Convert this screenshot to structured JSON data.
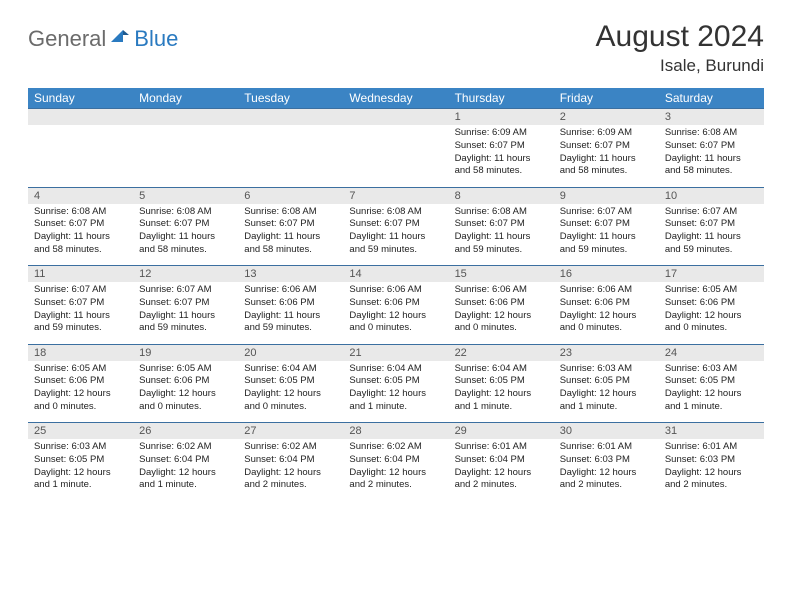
{
  "brand": {
    "general": "General",
    "blue": "Blue"
  },
  "title": "August 2024",
  "location": "Isale, Burundi",
  "colors": {
    "header_bg": "#3b84c4",
    "header_text": "#ffffff",
    "daynum_bg": "#e9e9e9",
    "rule": "#3b6fa0",
    "logo_gray": "#6b6b6b",
    "logo_blue": "#2a7ac0"
  },
  "day_headers": [
    "Sunday",
    "Monday",
    "Tuesday",
    "Wednesday",
    "Thursday",
    "Friday",
    "Saturday"
  ],
  "weeks": [
    {
      "nums": [
        "",
        "",
        "",
        "",
        "1",
        "2",
        "3"
      ],
      "cells": [
        null,
        null,
        null,
        null,
        {
          "sunrise": "6:09 AM",
          "sunset": "6:07 PM",
          "daylight": "11 hours and 58 minutes."
        },
        {
          "sunrise": "6:09 AM",
          "sunset": "6:07 PM",
          "daylight": "11 hours and 58 minutes."
        },
        {
          "sunrise": "6:08 AM",
          "sunset": "6:07 PM",
          "daylight": "11 hours and 58 minutes."
        }
      ]
    },
    {
      "nums": [
        "4",
        "5",
        "6",
        "7",
        "8",
        "9",
        "10"
      ],
      "cells": [
        {
          "sunrise": "6:08 AM",
          "sunset": "6:07 PM",
          "daylight": "11 hours and 58 minutes."
        },
        {
          "sunrise": "6:08 AM",
          "sunset": "6:07 PM",
          "daylight": "11 hours and 58 minutes."
        },
        {
          "sunrise": "6:08 AM",
          "sunset": "6:07 PM",
          "daylight": "11 hours and 58 minutes."
        },
        {
          "sunrise": "6:08 AM",
          "sunset": "6:07 PM",
          "daylight": "11 hours and 59 minutes."
        },
        {
          "sunrise": "6:08 AM",
          "sunset": "6:07 PM",
          "daylight": "11 hours and 59 minutes."
        },
        {
          "sunrise": "6:07 AM",
          "sunset": "6:07 PM",
          "daylight": "11 hours and 59 minutes."
        },
        {
          "sunrise": "6:07 AM",
          "sunset": "6:07 PM",
          "daylight": "11 hours and 59 minutes."
        }
      ]
    },
    {
      "nums": [
        "11",
        "12",
        "13",
        "14",
        "15",
        "16",
        "17"
      ],
      "cells": [
        {
          "sunrise": "6:07 AM",
          "sunset": "6:07 PM",
          "daylight": "11 hours and 59 minutes."
        },
        {
          "sunrise": "6:07 AM",
          "sunset": "6:07 PM",
          "daylight": "11 hours and 59 minutes."
        },
        {
          "sunrise": "6:06 AM",
          "sunset": "6:06 PM",
          "daylight": "11 hours and 59 minutes."
        },
        {
          "sunrise": "6:06 AM",
          "sunset": "6:06 PM",
          "daylight": "12 hours and 0 minutes."
        },
        {
          "sunrise": "6:06 AM",
          "sunset": "6:06 PM",
          "daylight": "12 hours and 0 minutes."
        },
        {
          "sunrise": "6:06 AM",
          "sunset": "6:06 PM",
          "daylight": "12 hours and 0 minutes."
        },
        {
          "sunrise": "6:05 AM",
          "sunset": "6:06 PM",
          "daylight": "12 hours and 0 minutes."
        }
      ]
    },
    {
      "nums": [
        "18",
        "19",
        "20",
        "21",
        "22",
        "23",
        "24"
      ],
      "cells": [
        {
          "sunrise": "6:05 AM",
          "sunset": "6:06 PM",
          "daylight": "12 hours and 0 minutes."
        },
        {
          "sunrise": "6:05 AM",
          "sunset": "6:06 PM",
          "daylight": "12 hours and 0 minutes."
        },
        {
          "sunrise": "6:04 AM",
          "sunset": "6:05 PM",
          "daylight": "12 hours and 0 minutes."
        },
        {
          "sunrise": "6:04 AM",
          "sunset": "6:05 PM",
          "daylight": "12 hours and 1 minute."
        },
        {
          "sunrise": "6:04 AM",
          "sunset": "6:05 PM",
          "daylight": "12 hours and 1 minute."
        },
        {
          "sunrise": "6:03 AM",
          "sunset": "6:05 PM",
          "daylight": "12 hours and 1 minute."
        },
        {
          "sunrise": "6:03 AM",
          "sunset": "6:05 PM",
          "daylight": "12 hours and 1 minute."
        }
      ]
    },
    {
      "nums": [
        "25",
        "26",
        "27",
        "28",
        "29",
        "30",
        "31"
      ],
      "cells": [
        {
          "sunrise": "6:03 AM",
          "sunset": "6:05 PM",
          "daylight": "12 hours and 1 minute."
        },
        {
          "sunrise": "6:02 AM",
          "sunset": "6:04 PM",
          "daylight": "12 hours and 1 minute."
        },
        {
          "sunrise": "6:02 AM",
          "sunset": "6:04 PM",
          "daylight": "12 hours and 2 minutes."
        },
        {
          "sunrise": "6:02 AM",
          "sunset": "6:04 PM",
          "daylight": "12 hours and 2 minutes."
        },
        {
          "sunrise": "6:01 AM",
          "sunset": "6:04 PM",
          "daylight": "12 hours and 2 minutes."
        },
        {
          "sunrise": "6:01 AM",
          "sunset": "6:03 PM",
          "daylight": "12 hours and 2 minutes."
        },
        {
          "sunrise": "6:01 AM",
          "sunset": "6:03 PM",
          "daylight": "12 hours and 2 minutes."
        }
      ]
    }
  ],
  "labels": {
    "sunrise": "Sunrise:",
    "sunset": "Sunset:",
    "daylight": "Daylight:"
  }
}
